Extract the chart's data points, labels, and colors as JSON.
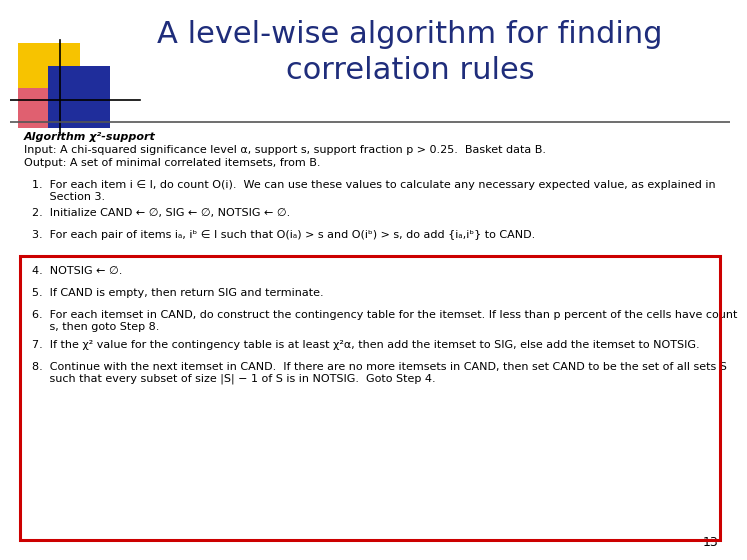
{
  "title_line1": "A level-wise algorithm for finding",
  "title_line2": "correlation rules",
  "title_color": "#1F2D7B",
  "title_fontsize": 22,
  "bg_color": "#FFFFFF",
  "page_number": "13",
  "header_line_color": "#555555",
  "box_color": "#CC0000",
  "text_color": "#000000",
  "algorithm_header_italic": "Algorithm χ²-support",
  "algorithm_header_line1": "Input: A chi-squared significance level α, support s, support fraction p > 0.25.  Basket data B.",
  "algorithm_header_line2": "Output: A set of minimal correlated itemsets, from B.",
  "steps_outside_box": [
    "1.  For each item i ∈ I, do count O(i).  We can use these values to calculate any necessary expected value, as explained in\n     Section 3.",
    "2.  Initialize CAND ← ∅, SIG ← ∅, NOTSIG ← ∅.",
    "3.  For each pair of items iₐ, iᵇ ∈ I such that O(iₐ) > s and O(iᵇ) > s, do add {iₐ,iᵇ} to CAND."
  ],
  "steps_inside_box": [
    "4.  NOTSIG ← ∅.",
    "5.  If CAND is empty, then return SIG and terminate.",
    "6.  For each itemset in CAND, do construct the contingency table for the itemset. If less than p percent of the cells have count\n     s, then goto Step 8.",
    "7.  If the χ² value for the contingency table is at least χ²α, then add the itemset to SIG, else add the itemset to NOTSIG.",
    "8.  Continue with the next itemset in CAND.  If there are no more itemsets in CAND, then set CAND to be the set of all sets S\n     such that every subset of size |S| − 1 of S is in NOTSIG.  Goto Step 4."
  ]
}
